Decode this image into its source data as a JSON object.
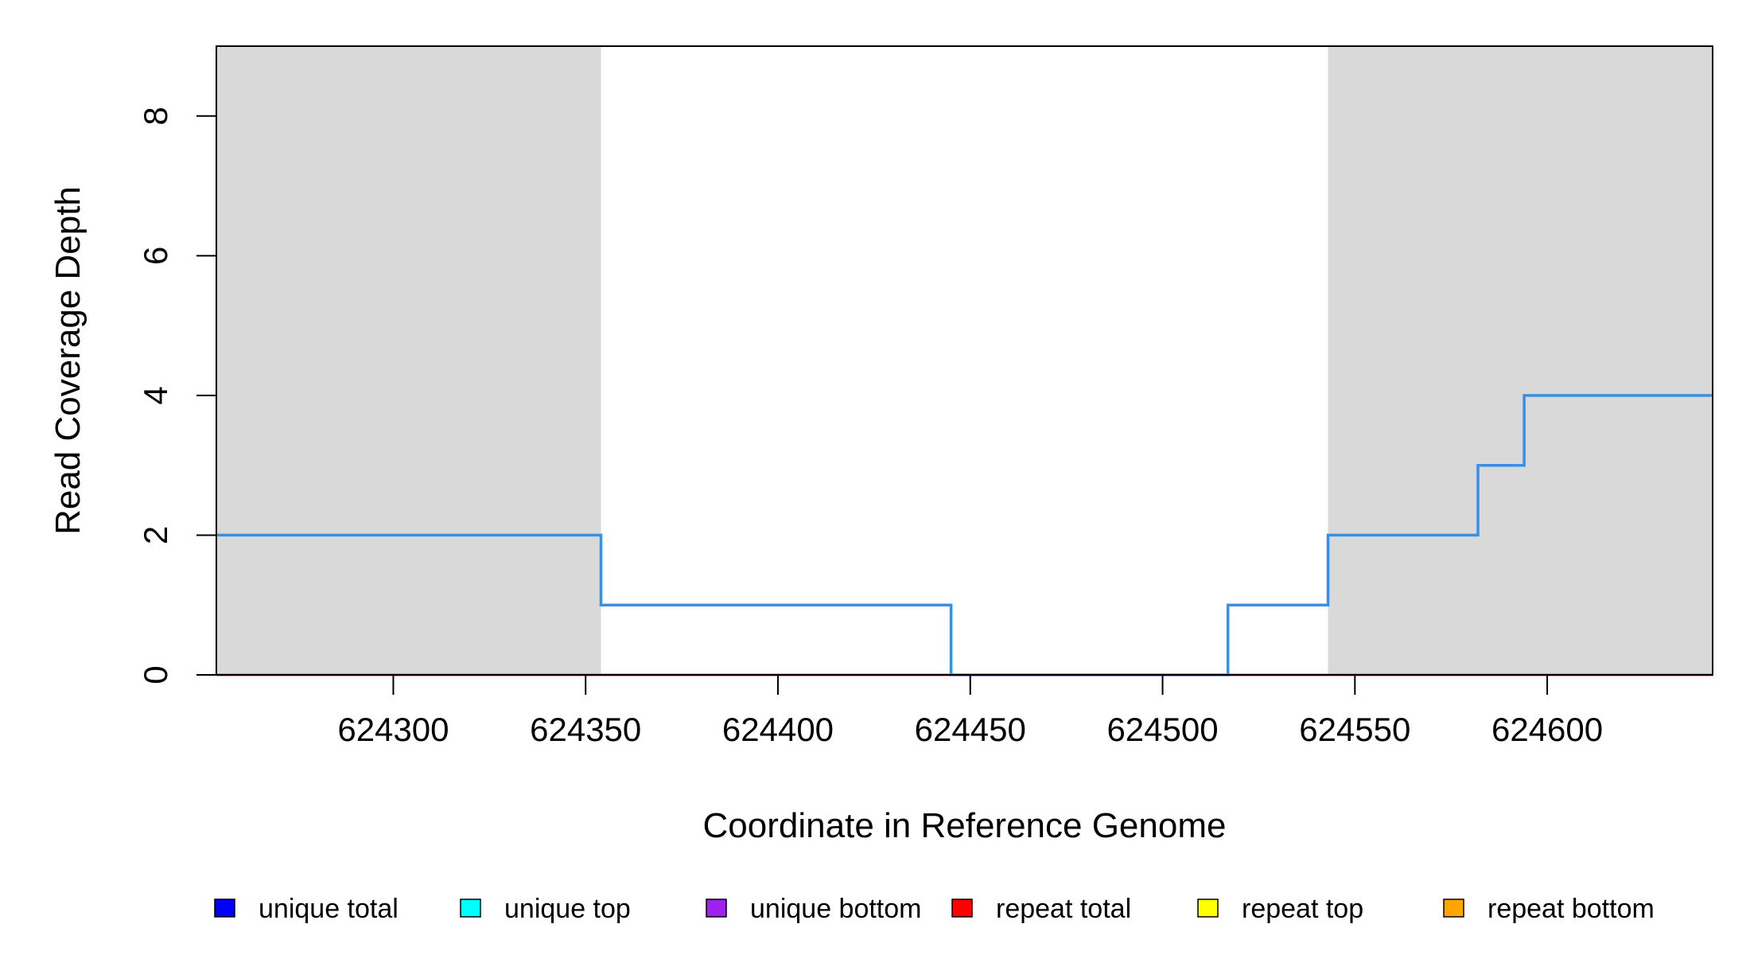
{
  "chart_data": {
    "type": "line",
    "title": "",
    "xlabel": "Coordinate in Reference Genome",
    "ylabel": "Read Coverage Depth",
    "xlim": [
      624254,
      624643
    ],
    "ylim": [
      0,
      9
    ],
    "x_ticks": [
      624300,
      624350,
      624400,
      624450,
      624500,
      624550,
      624600
    ],
    "y_ticks": [
      0,
      2,
      4,
      6,
      8
    ],
    "shaded_regions": [
      {
        "start": 624254,
        "end": 624354,
        "color": "#d9d9d9"
      },
      {
        "start": 624543,
        "end": 624643,
        "color": "#d9d9d9"
      }
    ],
    "grid": false,
    "legend_position": "bottom",
    "legend": [
      {
        "label": "unique total",
        "color": "#0000ff"
      },
      {
        "label": "unique top",
        "color": "#00ffff"
      },
      {
        "label": "unique bottom",
        "color": "#a020f0"
      },
      {
        "label": "repeat total",
        "color": "#ff0000"
      },
      {
        "label": "repeat top",
        "color": "#ffff00"
      },
      {
        "label": "repeat bottom",
        "color": "#ffa500"
      }
    ],
    "series": [
      {
        "color": "#3a8ee6",
        "step": true,
        "x": [
          624254,
          624354,
          624354,
          624445,
          624445,
          624517,
          624517,
          624543,
          624543,
          624582,
          624582,
          624594,
          624594,
          624643
        ],
        "y": [
          2,
          2,
          1,
          1,
          0,
          0,
          1,
          1,
          2,
          2,
          3,
          3,
          4,
          4
        ]
      },
      {
        "color": "#c0504d",
        "step": false,
        "x": [
          624254,
          624643
        ],
        "y": [
          0,
          0
        ]
      },
      {
        "color": "#7b68ee",
        "step": false,
        "x": [
          624445,
          624517
        ],
        "y": [
          0,
          0
        ]
      }
    ]
  }
}
